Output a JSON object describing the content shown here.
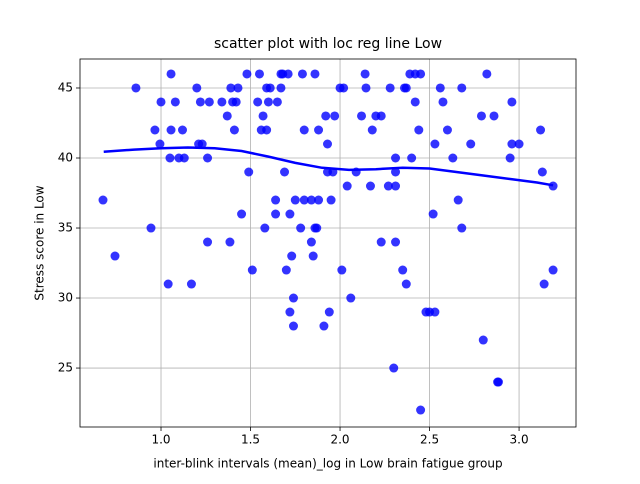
{
  "chart_data": {
    "type": "scatter",
    "title": "scatter plot with loc reg line Low",
    "xlabel": "inter-blink intervals (mean)_log in Low brain fatigue group",
    "ylabel": "Stress score in Low",
    "xlim": [
      0.5475,
      3.318
    ],
    "ylim": [
      20.79,
      47.07
    ],
    "xticks": [
      {
        "value": 1.0,
        "label": "1.0"
      },
      {
        "value": 1.5,
        "label": "1.5"
      },
      {
        "value": 2.0,
        "label": "2.0"
      },
      {
        "value": 2.5,
        "label": "2.5"
      },
      {
        "value": 3.0,
        "label": "3.0"
      }
    ],
    "yticks": [
      25,
      30,
      35,
      40,
      45
    ],
    "grid": true,
    "points": {
      "color": "#0000ff",
      "x": [
        0.676,
        0.743,
        0.86,
        0.944,
        0.966,
        0.994,
        1.0,
        1.04,
        1.056,
        1.056,
        1.05,
        1.08,
        1.1,
        1.12,
        1.13,
        1.17,
        1.2,
        1.21,
        1.22,
        1.23,
        1.26,
        1.26,
        1.27,
        1.34,
        1.37,
        1.385,
        1.39,
        1.4,
        1.41,
        1.42,
        1.43,
        1.45,
        1.48,
        1.49,
        1.51,
        1.55,
        1.54,
        1.56,
        1.57,
        1.58,
        1.59,
        1.59,
        1.6,
        1.61,
        1.64,
        1.64,
        1.65,
        1.67,
        1.67,
        1.68,
        1.69,
        1.7,
        1.71,
        1.72,
        1.72,
        1.73,
        1.74,
        1.74,
        1.75,
        1.78,
        1.79,
        1.8,
        1.8,
        1.84,
        1.84,
        1.85,
        1.86,
        1.86,
        1.87,
        1.88,
        1.88,
        1.91,
        1.92,
        1.93,
        1.93,
        1.94,
        1.95,
        1.96,
        1.97,
        2.0,
        2.01,
        2.02,
        2.04,
        2.06,
        2.09,
        2.12,
        2.14,
        2.145,
        2.17,
        2.18,
        2.2,
        2.23,
        2.23,
        2.27,
        2.28,
        2.3,
        2.31,
        2.31,
        2.31,
        2.31,
        2.35,
        2.36,
        2.37,
        2.37,
        2.39,
        2.4,
        2.42,
        2.42,
        2.44,
        2.45,
        2.45,
        2.48,
        2.5,
        2.52,
        2.53,
        2.53,
        2.56,
        2.575,
        2.6,
        2.63,
        2.66,
        2.68,
        2.68,
        2.73,
        2.79,
        2.8,
        2.82,
        2.86,
        2.88,
        2.885,
        2.95,
        2.96,
        2.96,
        3.0,
        3.12,
        3.13,
        3.14,
        3.19,
        3.19
      ],
      "y": [
        37,
        33,
        45,
        35,
        42,
        41,
        44,
        31,
        46,
        42,
        40,
        44,
        40,
        42,
        40,
        31,
        45,
        41,
        44,
        41,
        40,
        34,
        44,
        44,
        43,
        34,
        45,
        44,
        42,
        44,
        45,
        36,
        46,
        39,
        32,
        46,
        44,
        42,
        43,
        35,
        45,
        42,
        44,
        45,
        37,
        36,
        44,
        46,
        45,
        46,
        39,
        32,
        46,
        36,
        29,
        33,
        30,
        28,
        37,
        35,
        46,
        37,
        42,
        34,
        37,
        33,
        35,
        46,
        35,
        37,
        42,
        28,
        43,
        41,
        39,
        29,
        37,
        39,
        43,
        45,
        32,
        45,
        38,
        30,
        39,
        43,
        46,
        45,
        38,
        42,
        43,
        34,
        43,
        38,
        45,
        25,
        40,
        39,
        38,
        34,
        32,
        45,
        45,
        31,
        46,
        40,
        46,
        44,
        42,
        22,
        46,
        29,
        29,
        36,
        29,
        41,
        45,
        44,
        42,
        40,
        37,
        45,
        35,
        41,
        43,
        27,
        46,
        43,
        24,
        24,
        40,
        44,
        41,
        41,
        42,
        39,
        31,
        38,
        32
      ]
    },
    "fit_line": {
      "color": "#0000ff",
      "x": [
        0.68,
        0.85,
        1.0,
        1.15,
        1.3,
        1.45,
        1.6,
        1.75,
        1.9,
        2.05,
        2.2,
        2.35,
        2.5,
        2.65,
        2.8,
        2.95,
        3.1,
        3.19
      ],
      "y": [
        40.45,
        40.6,
        40.7,
        40.75,
        40.7,
        40.5,
        40.1,
        39.65,
        39.3,
        39.15,
        39.2,
        39.3,
        39.25,
        39.0,
        38.75,
        38.5,
        38.25,
        38.05
      ]
    }
  }
}
